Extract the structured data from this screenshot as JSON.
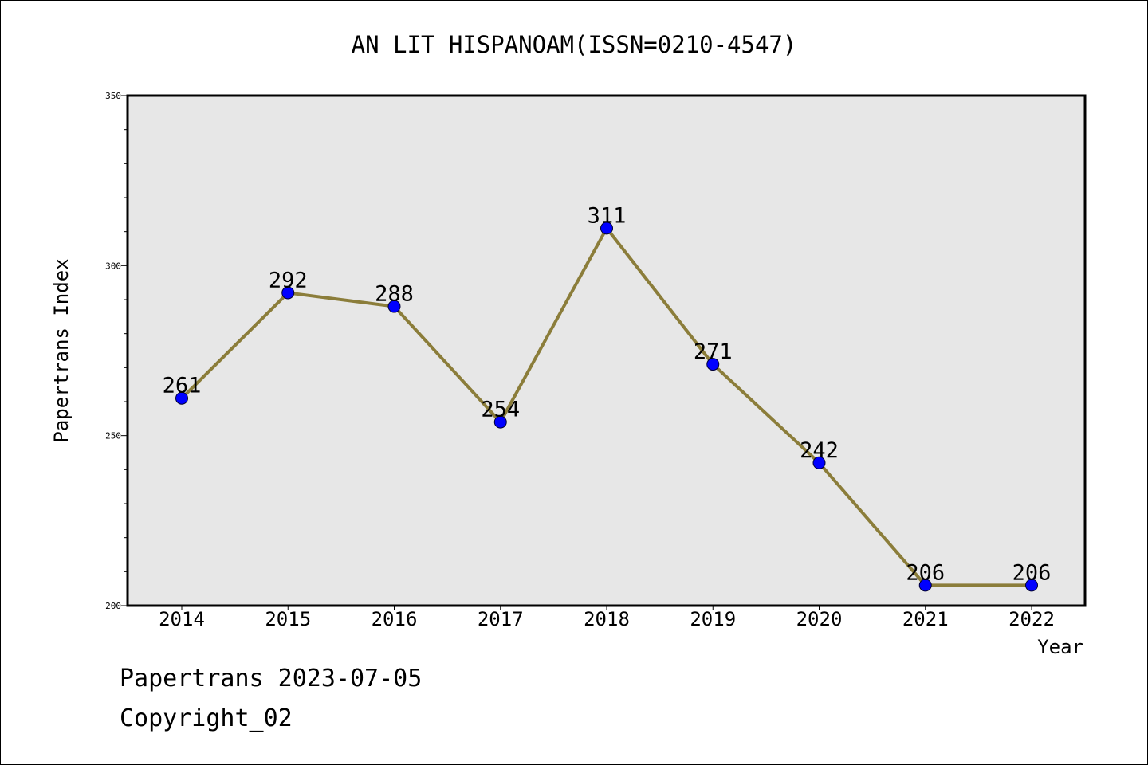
{
  "chart_data": {
    "type": "line",
    "title": "AN LIT HISPANOAM(ISSN=0210-4547)",
    "xlabel": "Year",
    "ylabel": "Papertrans Index",
    "categories": [
      "2014",
      "2015",
      "2016",
      "2017",
      "2018",
      "2019",
      "2020",
      "2021",
      "2022"
    ],
    "series": [
      {
        "values": [
          261,
          292,
          288,
          254,
          311,
          271,
          242,
          206,
          206
        ]
      }
    ],
    "ylim": [
      200,
      350
    ],
    "yticks": [
      "200",
      "250",
      "300",
      "350"
    ],
    "grid": false,
    "line_color": "#8b7d3a",
    "marker_color": "#0000ff",
    "plot_background": "#e7e7e7"
  },
  "footer": {
    "line1": "Papertrans 2023-07-05",
    "line2": "Copyright_02"
  }
}
